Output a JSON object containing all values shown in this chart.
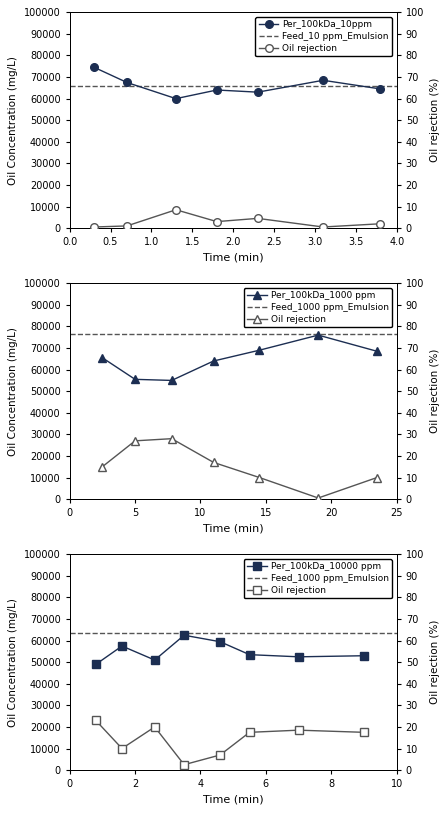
{
  "panel1": {
    "conc_label": "Per_100kDa_10ppm",
    "feed_label": "Feed_10 ppm_Emulsion",
    "rejection_label": "Oil rejection",
    "conc_x": [
      0.3,
      0.7,
      1.3,
      1.8,
      2.3,
      3.1,
      3.8
    ],
    "conc_y": [
      74500,
      67500,
      60000,
      64000,
      63000,
      68500,
      64500
    ],
    "feed_y": 66000,
    "rej_x": [
      0.3,
      0.7,
      1.3,
      1.8,
      2.3,
      3.1,
      3.8
    ],
    "rej_y": [
      0.5,
      1.0,
      8.5,
      3.0,
      4.5,
      0.5,
      2.0
    ],
    "xlim": [
      0,
      4
    ],
    "xticks": [
      0,
      0.5,
      1.0,
      1.5,
      2.0,
      2.5,
      3.0,
      3.5,
      4.0
    ],
    "xlabel": "Time (min)",
    "marker": "o"
  },
  "panel2": {
    "conc_label": "Per_100kDa_1000 ppm",
    "feed_label": "Feed_1000 ppm_Emulsion",
    "rejection_label": "Oil rejection",
    "conc_x": [
      2.5,
      5.0,
      7.8,
      11.0,
      14.5,
      19.0,
      23.5
    ],
    "conc_y": [
      65500,
      55500,
      55000,
      64000,
      69000,
      76000,
      68500
    ],
    "feed_y": 76500,
    "rej_x": [
      2.5,
      5.0,
      7.8,
      11.0,
      14.5,
      19.0,
      23.5
    ],
    "rej_y": [
      15,
      27,
      28,
      17,
      10,
      0.5,
      10
    ],
    "xlim": [
      0,
      25
    ],
    "xticks": [
      0,
      5,
      10,
      15,
      20,
      25
    ],
    "xlabel": "Time (min)",
    "marker": "^"
  },
  "panel3": {
    "conc_label": "Per_100kDa_10000 ppm",
    "feed_label": "Feed_1000 ppm_Emulsion",
    "rejection_label": "Oil rejection",
    "conc_x": [
      0.8,
      1.6,
      2.6,
      3.5,
      4.6,
      5.5,
      7.0,
      9.0
    ],
    "conc_y": [
      49000,
      57500,
      51000,
      62500,
      59500,
      53500,
      52500,
      53000
    ],
    "feed_y": 63500,
    "rej_x": [
      0.8,
      1.6,
      2.6,
      3.5,
      4.6,
      5.5,
      7.0,
      9.0
    ],
    "rej_y": [
      23,
      10,
      20,
      2.5,
      7,
      17.5,
      18.5,
      17.5
    ],
    "xlim": [
      0,
      10
    ],
    "xticks": [
      0,
      2,
      4,
      6,
      8,
      10
    ],
    "xlabel": "Time (min)",
    "marker": "s"
  },
  "ylabel_left": "Oil Concentration (mg/L)",
  "ylabel_right": "Oil rejection (%)",
  "ylim_left": [
    0,
    100000
  ],
  "ylim_right": [
    0,
    100
  ],
  "yticks_left": [
    0,
    10000,
    20000,
    30000,
    40000,
    50000,
    60000,
    70000,
    80000,
    90000,
    100000
  ],
  "yticks_right": [
    0,
    10,
    20,
    30,
    40,
    50,
    60,
    70,
    80,
    90,
    100
  ],
  "line_color": "#1c2e52",
  "feed_color": "#555555",
  "rej_color": "#555555",
  "background": "#ffffff",
  "figsize": [
    4.48,
    8.13
  ],
  "dpi": 100
}
